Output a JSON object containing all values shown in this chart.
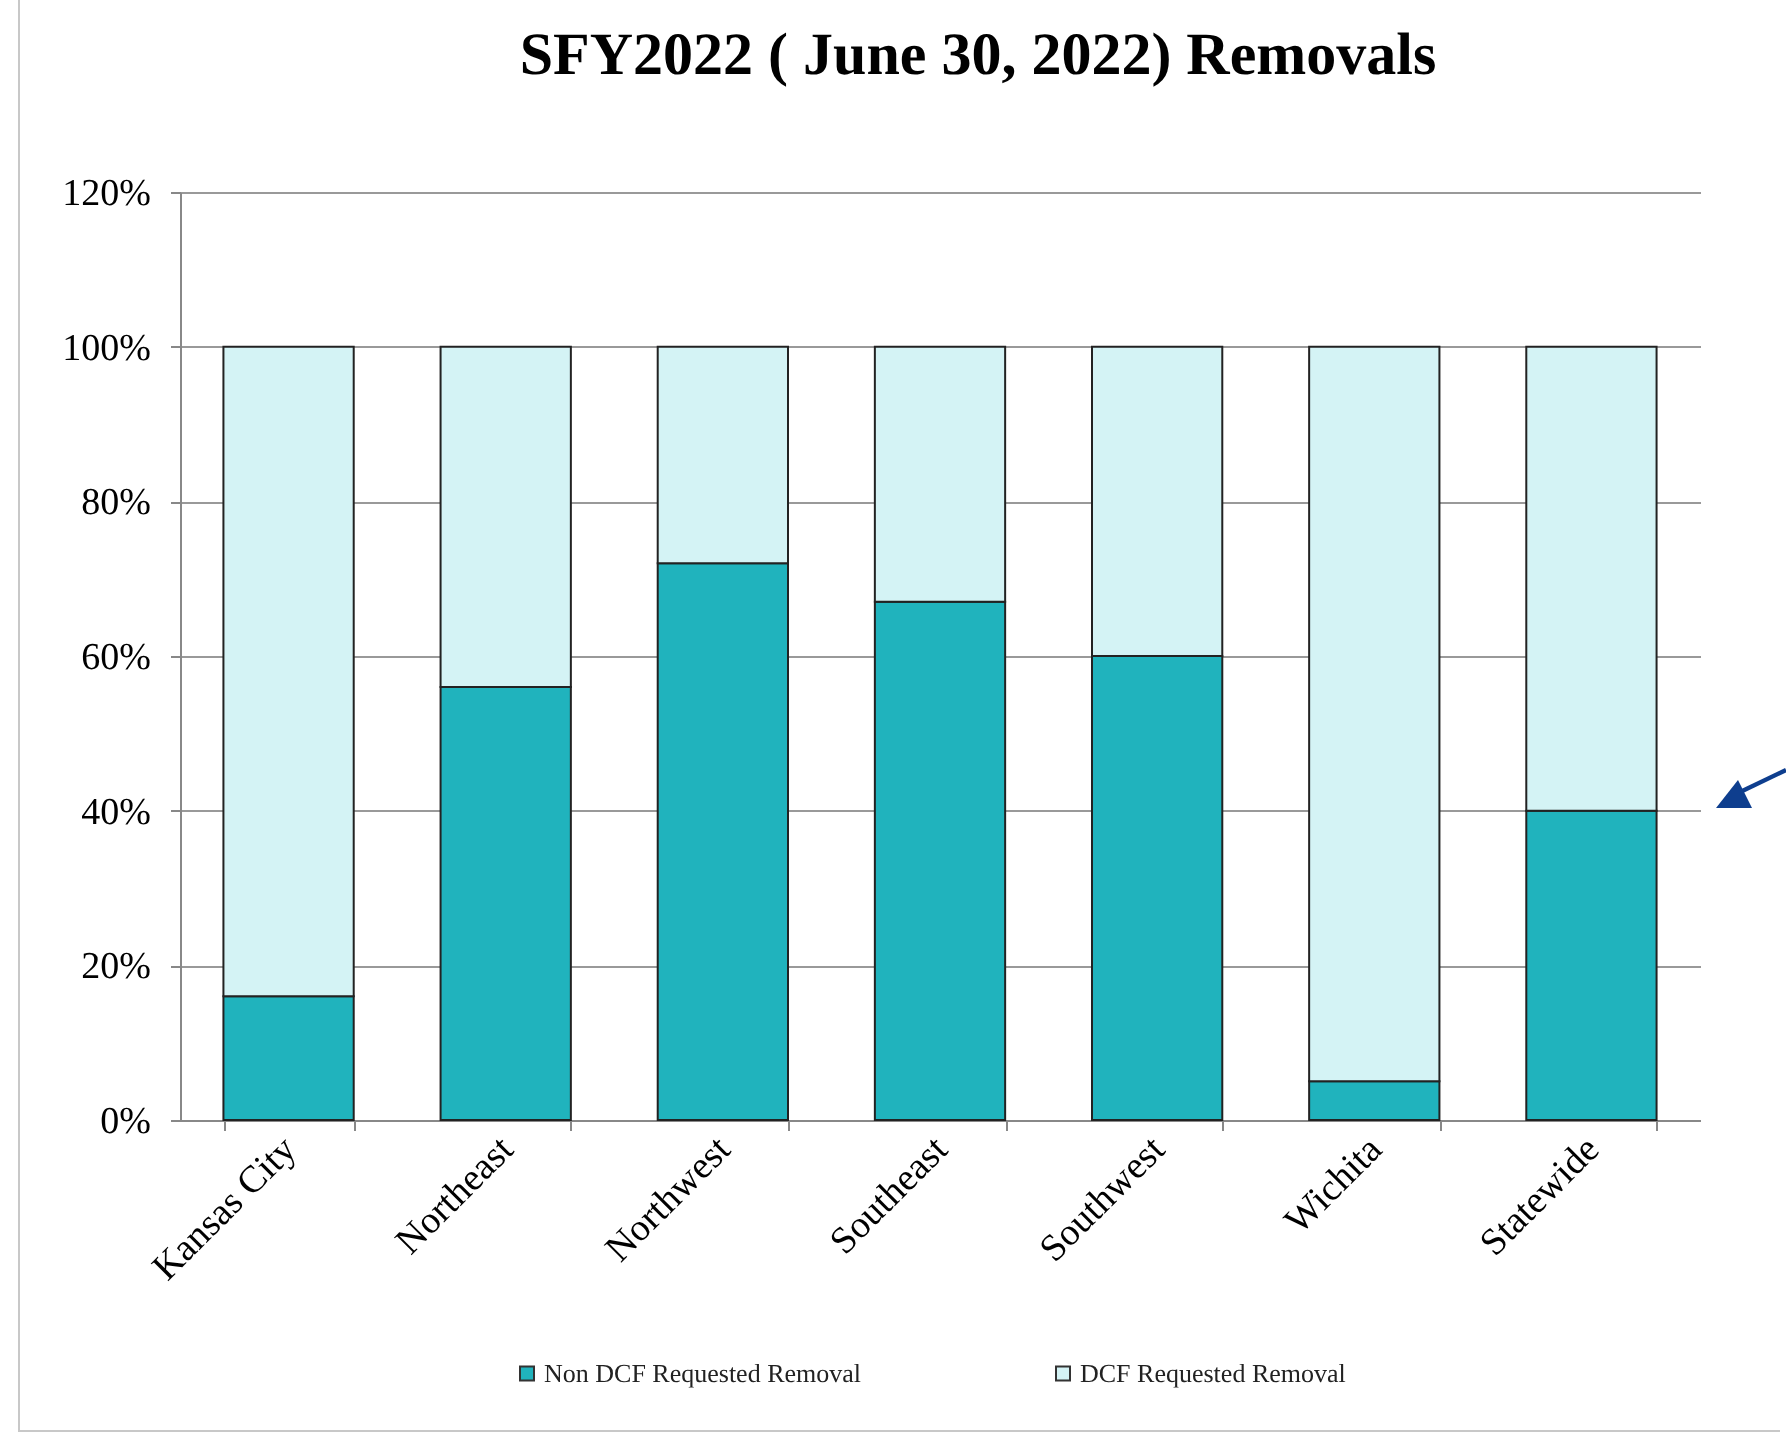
{
  "chart_data": {
    "type": "bar",
    "title": "SFY2022 ( June 30, 2022) Removals",
    "categories": [
      "Kansas City",
      "Northeast",
      "Northwest",
      "Southeast",
      "Southwest",
      "Wichita",
      "Statewide"
    ],
    "series": [
      {
        "name": "Non DCF Requested Removal",
        "color": "#20b3bd",
        "values": [
          16,
          56,
          72,
          67,
          60,
          5,
          40
        ]
      },
      {
        "name": "DCF Requested Removal",
        "color": "#d4f3f5",
        "values": [
          84,
          44,
          28,
          33,
          40,
          95,
          60
        ]
      }
    ],
    "stacked": true,
    "ylim": [
      0,
      120
    ],
    "yticks": [
      {
        "value": 0,
        "label": "0%"
      },
      {
        "value": 20,
        "label": "20%"
      },
      {
        "value": 40,
        "label": "40%"
      },
      {
        "value": 60,
        "label": "60%"
      },
      {
        "value": 80,
        "label": "80%"
      },
      {
        "value": 100,
        "label": "100%"
      },
      {
        "value": 120,
        "label": "120%"
      }
    ],
    "grid": "y",
    "legend": "bottom"
  }
}
